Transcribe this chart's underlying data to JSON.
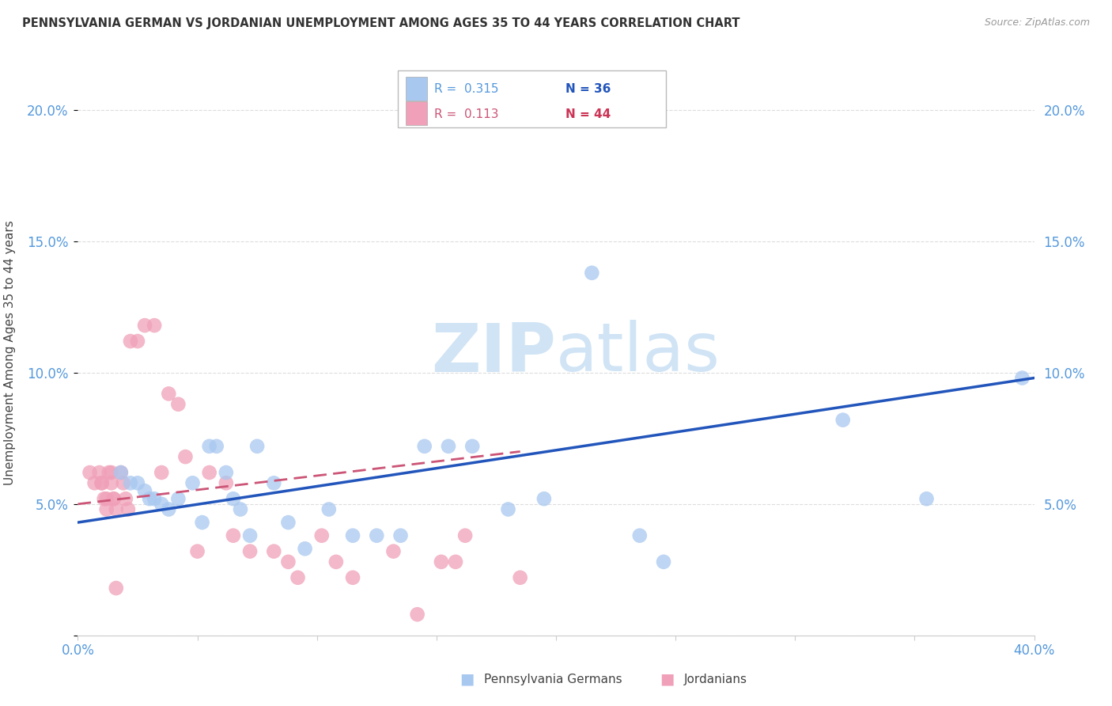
{
  "title": "PENNSYLVANIA GERMAN VS JORDANIAN UNEMPLOYMENT AMONG AGES 35 TO 44 YEARS CORRELATION CHART",
  "source": "Source: ZipAtlas.com",
  "ylabel": "Unemployment Among Ages 35 to 44 years",
  "xlim": [
    0.0,
    0.4
  ],
  "ylim": [
    0.0,
    0.215
  ],
  "xticks": [
    0.0,
    0.05,
    0.1,
    0.15,
    0.2,
    0.25,
    0.3,
    0.35,
    0.4
  ],
  "yticks": [
    0.0,
    0.05,
    0.1,
    0.15,
    0.2
  ],
  "ytick_labels": [
    "",
    "5.0%",
    "10.0%",
    "15.0%",
    "20.0%"
  ],
  "xtick_labels": [
    "0.0%",
    "",
    "",
    "",
    "",
    "",
    "",
    "",
    "40.0%"
  ],
  "right_ytick_labels": [
    "",
    "5.0%",
    "10.0%",
    "15.0%",
    "20.0%"
  ],
  "watermark_zip": "ZIP",
  "watermark_atlas": "atlas",
  "blue_color": "#A8C8F0",
  "pink_color": "#F0A0B8",
  "blue_line_color": "#2255BB",
  "pink_line_color": "#CC5577",
  "legend_R_blue": "0.315",
  "legend_N_blue": "36",
  "legend_R_pink": "0.113",
  "legend_N_pink": "44",
  "blue_scatter_x": [
    0.018,
    0.022,
    0.025,
    0.028,
    0.03,
    0.032,
    0.035,
    0.038,
    0.042,
    0.048,
    0.052,
    0.055,
    0.058,
    0.062,
    0.065,
    0.068,
    0.072,
    0.075,
    0.082,
    0.088,
    0.095,
    0.105,
    0.115,
    0.125,
    0.135,
    0.145,
    0.155,
    0.165,
    0.18,
    0.195,
    0.215,
    0.235,
    0.245,
    0.32,
    0.355,
    0.395
  ],
  "blue_scatter_y": [
    0.062,
    0.058,
    0.058,
    0.055,
    0.052,
    0.052,
    0.05,
    0.048,
    0.052,
    0.058,
    0.043,
    0.072,
    0.072,
    0.062,
    0.052,
    0.048,
    0.038,
    0.072,
    0.058,
    0.043,
    0.033,
    0.048,
    0.038,
    0.038,
    0.038,
    0.072,
    0.072,
    0.072,
    0.048,
    0.052,
    0.138,
    0.038,
    0.028,
    0.082,
    0.052,
    0.098
  ],
  "pink_scatter_x": [
    0.005,
    0.007,
    0.009,
    0.01,
    0.01,
    0.011,
    0.012,
    0.012,
    0.013,
    0.014,
    0.014,
    0.015,
    0.015,
    0.016,
    0.016,
    0.018,
    0.019,
    0.02,
    0.021,
    0.022,
    0.025,
    0.028,
    0.032,
    0.035,
    0.038,
    0.042,
    0.045,
    0.05,
    0.055,
    0.062,
    0.065,
    0.072,
    0.082,
    0.088,
    0.092,
    0.102,
    0.108,
    0.115,
    0.132,
    0.142,
    0.152,
    0.158,
    0.162,
    0.185
  ],
  "pink_scatter_y": [
    0.062,
    0.058,
    0.062,
    0.058,
    0.058,
    0.052,
    0.052,
    0.048,
    0.062,
    0.062,
    0.058,
    0.052,
    0.052,
    0.048,
    0.018,
    0.062,
    0.058,
    0.052,
    0.048,
    0.112,
    0.112,
    0.118,
    0.118,
    0.062,
    0.092,
    0.088,
    0.068,
    0.032,
    0.062,
    0.058,
    0.038,
    0.032,
    0.032,
    0.028,
    0.022,
    0.038,
    0.028,
    0.022,
    0.032,
    0.008,
    0.028,
    0.028,
    0.038,
    0.022
  ],
  "blue_line_x": [
    0.0,
    0.4
  ],
  "blue_line_y": [
    0.043,
    0.098
  ],
  "pink_line_x": [
    0.0,
    0.185
  ],
  "pink_line_y": [
    0.05,
    0.07
  ],
  "background_color": "#FFFFFF",
  "grid_color": "#DDDDDD"
}
